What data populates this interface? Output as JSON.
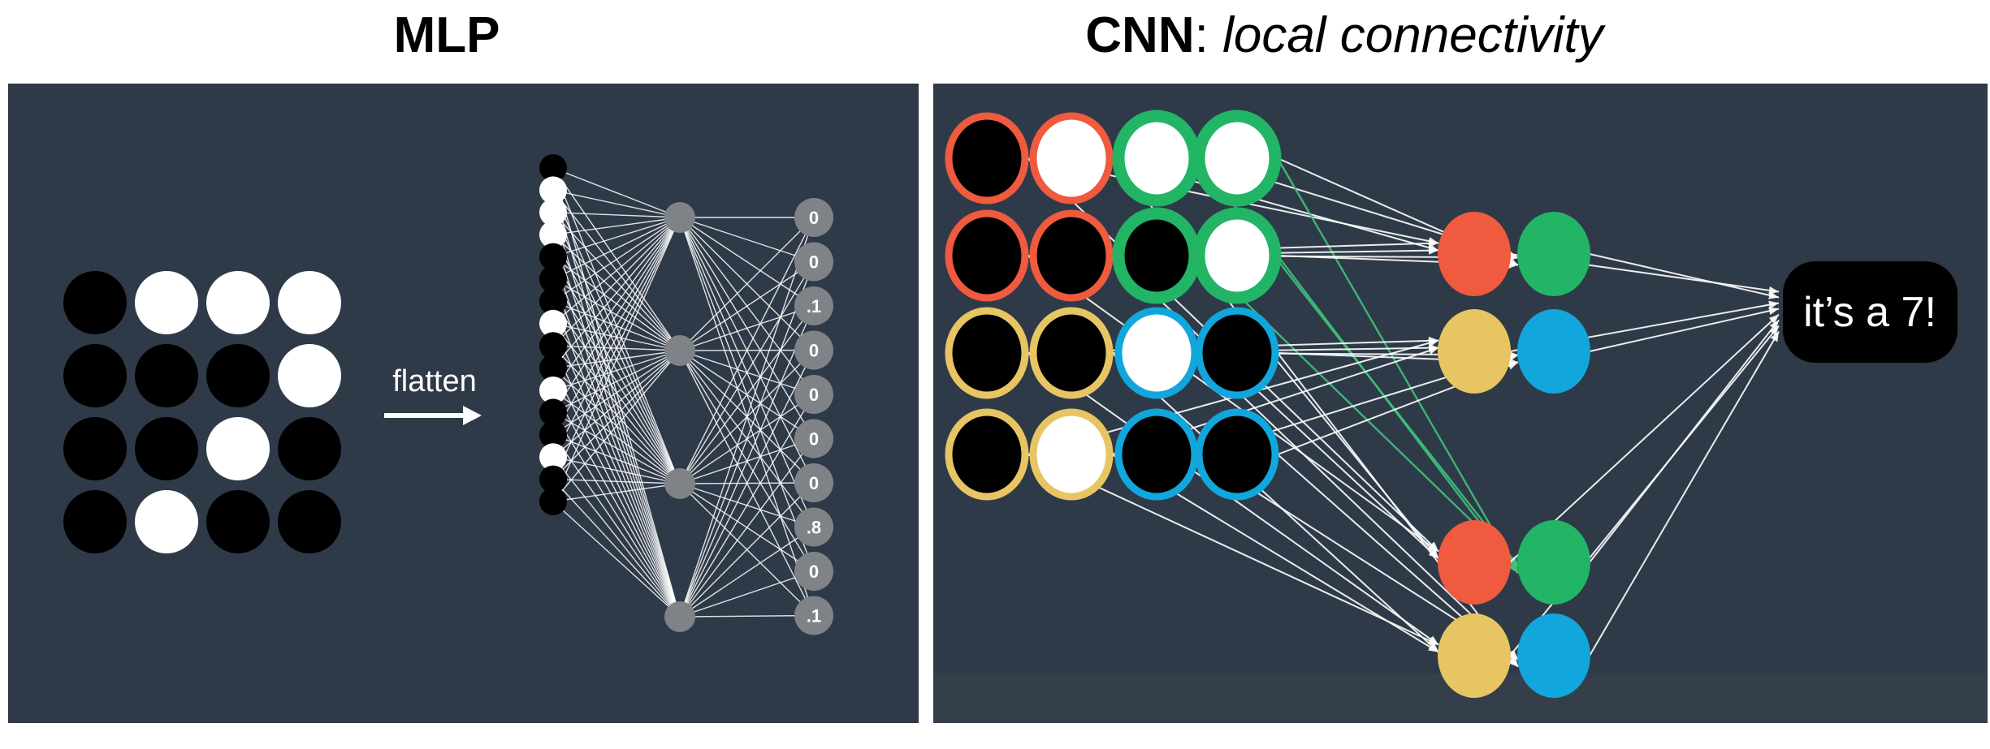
{
  "left_panel": {
    "title": "MLP",
    "flatten_label": "flatten",
    "image_grid": [
      [
        0,
        1,
        1,
        1
      ],
      [
        0,
        0,
        0,
        1
      ],
      [
        0,
        0,
        1,
        0
      ],
      [
        0,
        1,
        0,
        0
      ]
    ],
    "input_column": [
      0,
      1,
      1,
      1,
      0,
      0,
      0,
      1,
      0,
      0,
      1,
      0,
      0,
      1,
      0,
      0
    ],
    "hidden_count": 4,
    "outputs": [
      "0",
      "0",
      ".1",
      "0",
      "0",
      "0",
      "0",
      ".8",
      "0",
      ".1"
    ]
  },
  "right_panel": {
    "title_bold": "CNN",
    "title_colon": ":",
    "title_italic": "local connectivity",
    "image_grid": [
      [
        0,
        1,
        1,
        1
      ],
      [
        0,
        0,
        0,
        1
      ],
      [
        0,
        0,
        1,
        0
      ],
      [
        0,
        1,
        0,
        0
      ]
    ],
    "region_colors": {
      "red": "#f05a3e",
      "green": "#22b566",
      "yellow": "#e8c563",
      "blue": "#11a6dc"
    },
    "output_label": "it’s a 7!"
  },
  "colors": {
    "panel_bg": "#2f3a48",
    "black": "#000000",
    "white": "#ffffff",
    "hidden_node": "#7f8388",
    "output_node": "#7f8388"
  }
}
